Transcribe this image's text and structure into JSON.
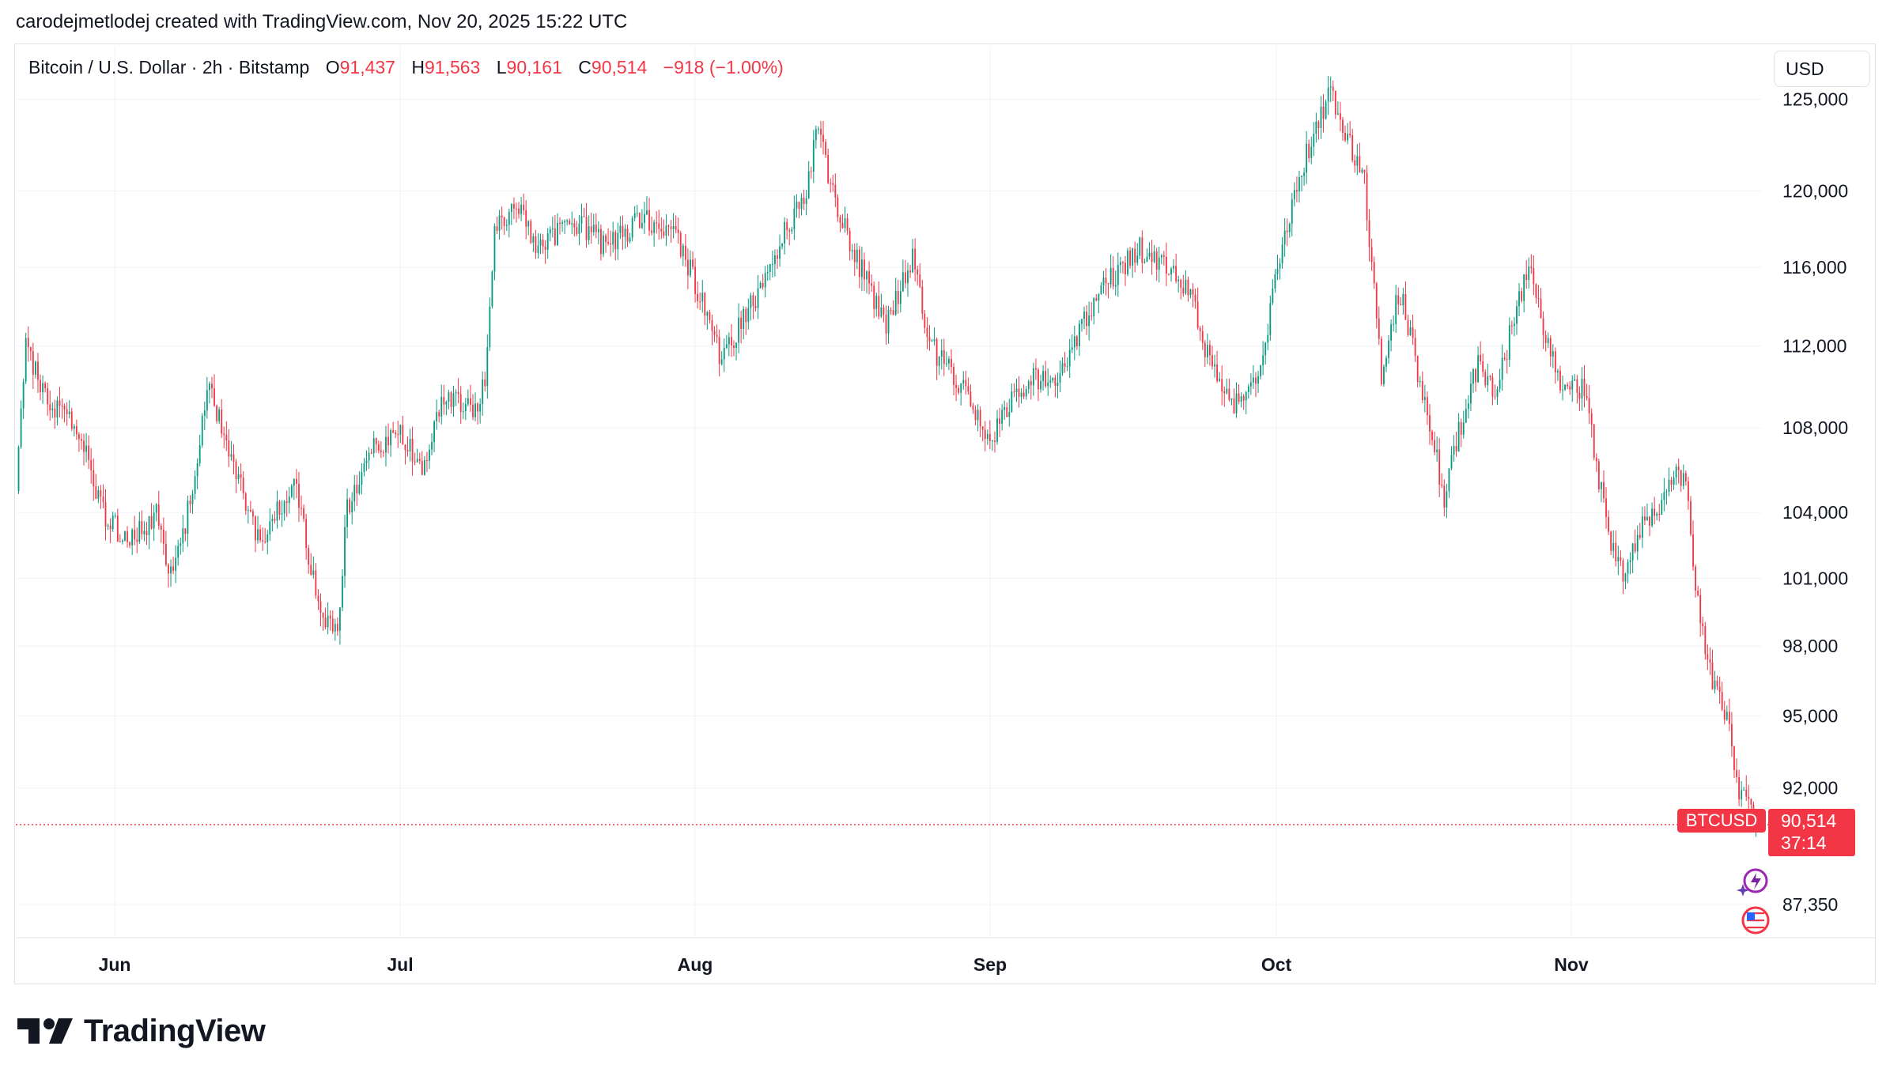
{
  "attribution": "carodejmetlodej created with TradingView.com, Nov 20, 2025 15:22 UTC",
  "legend": {
    "symbol": "Bitcoin / U.S. Dollar · 2h · Bitstamp",
    "o_label": "O",
    "o_value": "91,437",
    "h_label": "H",
    "h_value": "91,563",
    "l_label": "L",
    "l_value": "90,161",
    "c_label": "C",
    "c_value": "90,514",
    "change": "−918 (−1.00%)"
  },
  "currency_button": "USD",
  "price_tag": {
    "symbol": "BTCUSD",
    "price": "90,514",
    "countdown": "37:14"
  },
  "brand": "TradingView",
  "colors": {
    "up": "#089981",
    "down": "#f23645",
    "grid": "#f0f3fa",
    "text": "#131722"
  },
  "chart_data": {
    "type": "candlestick",
    "title": "Bitcoin / U.S. Dollar · 2h · Bitstamp",
    "series": [
      {
        "name": "BTCUSD",
        "anchors": [
          [
            0,
            105000
          ],
          [
            0.005,
            112000
          ],
          [
            0.02,
            109000
          ],
          [
            0.035,
            108000
          ],
          [
            0.05,
            104000
          ],
          [
            0.065,
            102500
          ],
          [
            0.08,
            104000
          ],
          [
            0.09,
            101000
          ],
          [
            0.1,
            104500
          ],
          [
            0.11,
            110000
          ],
          [
            0.125,
            106500
          ],
          [
            0.14,
            102500
          ],
          [
            0.16,
            105500
          ],
          [
            0.175,
            99000
          ],
          [
            0.185,
            98500
          ],
          [
            0.19,
            104000
          ],
          [
            0.2,
            106500
          ],
          [
            0.22,
            108000
          ],
          [
            0.235,
            106000
          ],
          [
            0.245,
            109500
          ],
          [
            0.265,
            109000
          ],
          [
            0.27,
            110500
          ],
          [
            0.275,
            118000
          ],
          [
            0.29,
            119000
          ],
          [
            0.3,
            117000
          ],
          [
            0.32,
            118500
          ],
          [
            0.34,
            117000
          ],
          [
            0.36,
            118500
          ],
          [
            0.38,
            117500
          ],
          [
            0.395,
            114000
          ],
          [
            0.405,
            111500
          ],
          [
            0.42,
            113500
          ],
          [
            0.44,
            117500
          ],
          [
            0.455,
            120000
          ],
          [
            0.46,
            124000
          ],
          [
            0.47,
            119500
          ],
          [
            0.48,
            117000
          ],
          [
            0.49,
            115000
          ],
          [
            0.5,
            113000
          ],
          [
            0.515,
            116500
          ],
          [
            0.525,
            112000
          ],
          [
            0.54,
            110500
          ],
          [
            0.55,
            109000
          ],
          [
            0.56,
            107500
          ],
          [
            0.57,
            109000
          ],
          [
            0.585,
            110500
          ],
          [
            0.595,
            110000
          ],
          [
            0.61,
            112500
          ],
          [
            0.625,
            115000
          ],
          [
            0.645,
            117000
          ],
          [
            0.66,
            116000
          ],
          [
            0.675,
            114500
          ],
          [
            0.685,
            111500
          ],
          [
            0.695,
            109500
          ],
          [
            0.705,
            109000
          ],
          [
            0.715,
            111000
          ],
          [
            0.73,
            118000
          ],
          [
            0.745,
            123000
          ],
          [
            0.755,
            125500
          ],
          [
            0.765,
            123000
          ],
          [
            0.775,
            120500
          ],
          [
            0.785,
            110000
          ],
          [
            0.795,
            115000
          ],
          [
            0.805,
            111000
          ],
          [
            0.815,
            107500
          ],
          [
            0.82,
            104500
          ],
          [
            0.83,
            108000
          ],
          [
            0.84,
            111000
          ],
          [
            0.85,
            109500
          ],
          [
            0.86,
            113000
          ],
          [
            0.87,
            116000
          ],
          [
            0.88,
            112000
          ],
          [
            0.89,
            109500
          ],
          [
            0.9,
            110000
          ],
          [
            0.905,
            108000
          ],
          [
            0.915,
            103000
          ],
          [
            0.925,
            101000
          ],
          [
            0.935,
            103500
          ],
          [
            0.945,
            104000
          ],
          [
            0.955,
            106000
          ],
          [
            0.96,
            105000
          ],
          [
            0.965,
            100500
          ],
          [
            0.975,
            96500
          ],
          [
            0.985,
            94500
          ],
          [
            0.99,
            91500
          ],
          [
            0.995,
            92000
          ],
          [
            1.0,
            90514
          ]
        ]
      }
    ],
    "x_ticks": [
      "Jun",
      "Jul",
      "Aug",
      "Sep",
      "Oct",
      "Nov"
    ],
    "y_ticks": [
      "125,000",
      "120,000",
      "116,000",
      "112,000",
      "108,000",
      "104,000",
      "101,000",
      "98,000",
      "95,000",
      "92,000",
      "87,350"
    ],
    "y_tick_values": [
      125000,
      120000,
      116000,
      112000,
      108000,
      104000,
      101000,
      98000,
      95000,
      92000,
      87350
    ],
    "ylim": [
      85500,
      128000
    ],
    "y_scale": "log",
    "last_price": 90514
  }
}
